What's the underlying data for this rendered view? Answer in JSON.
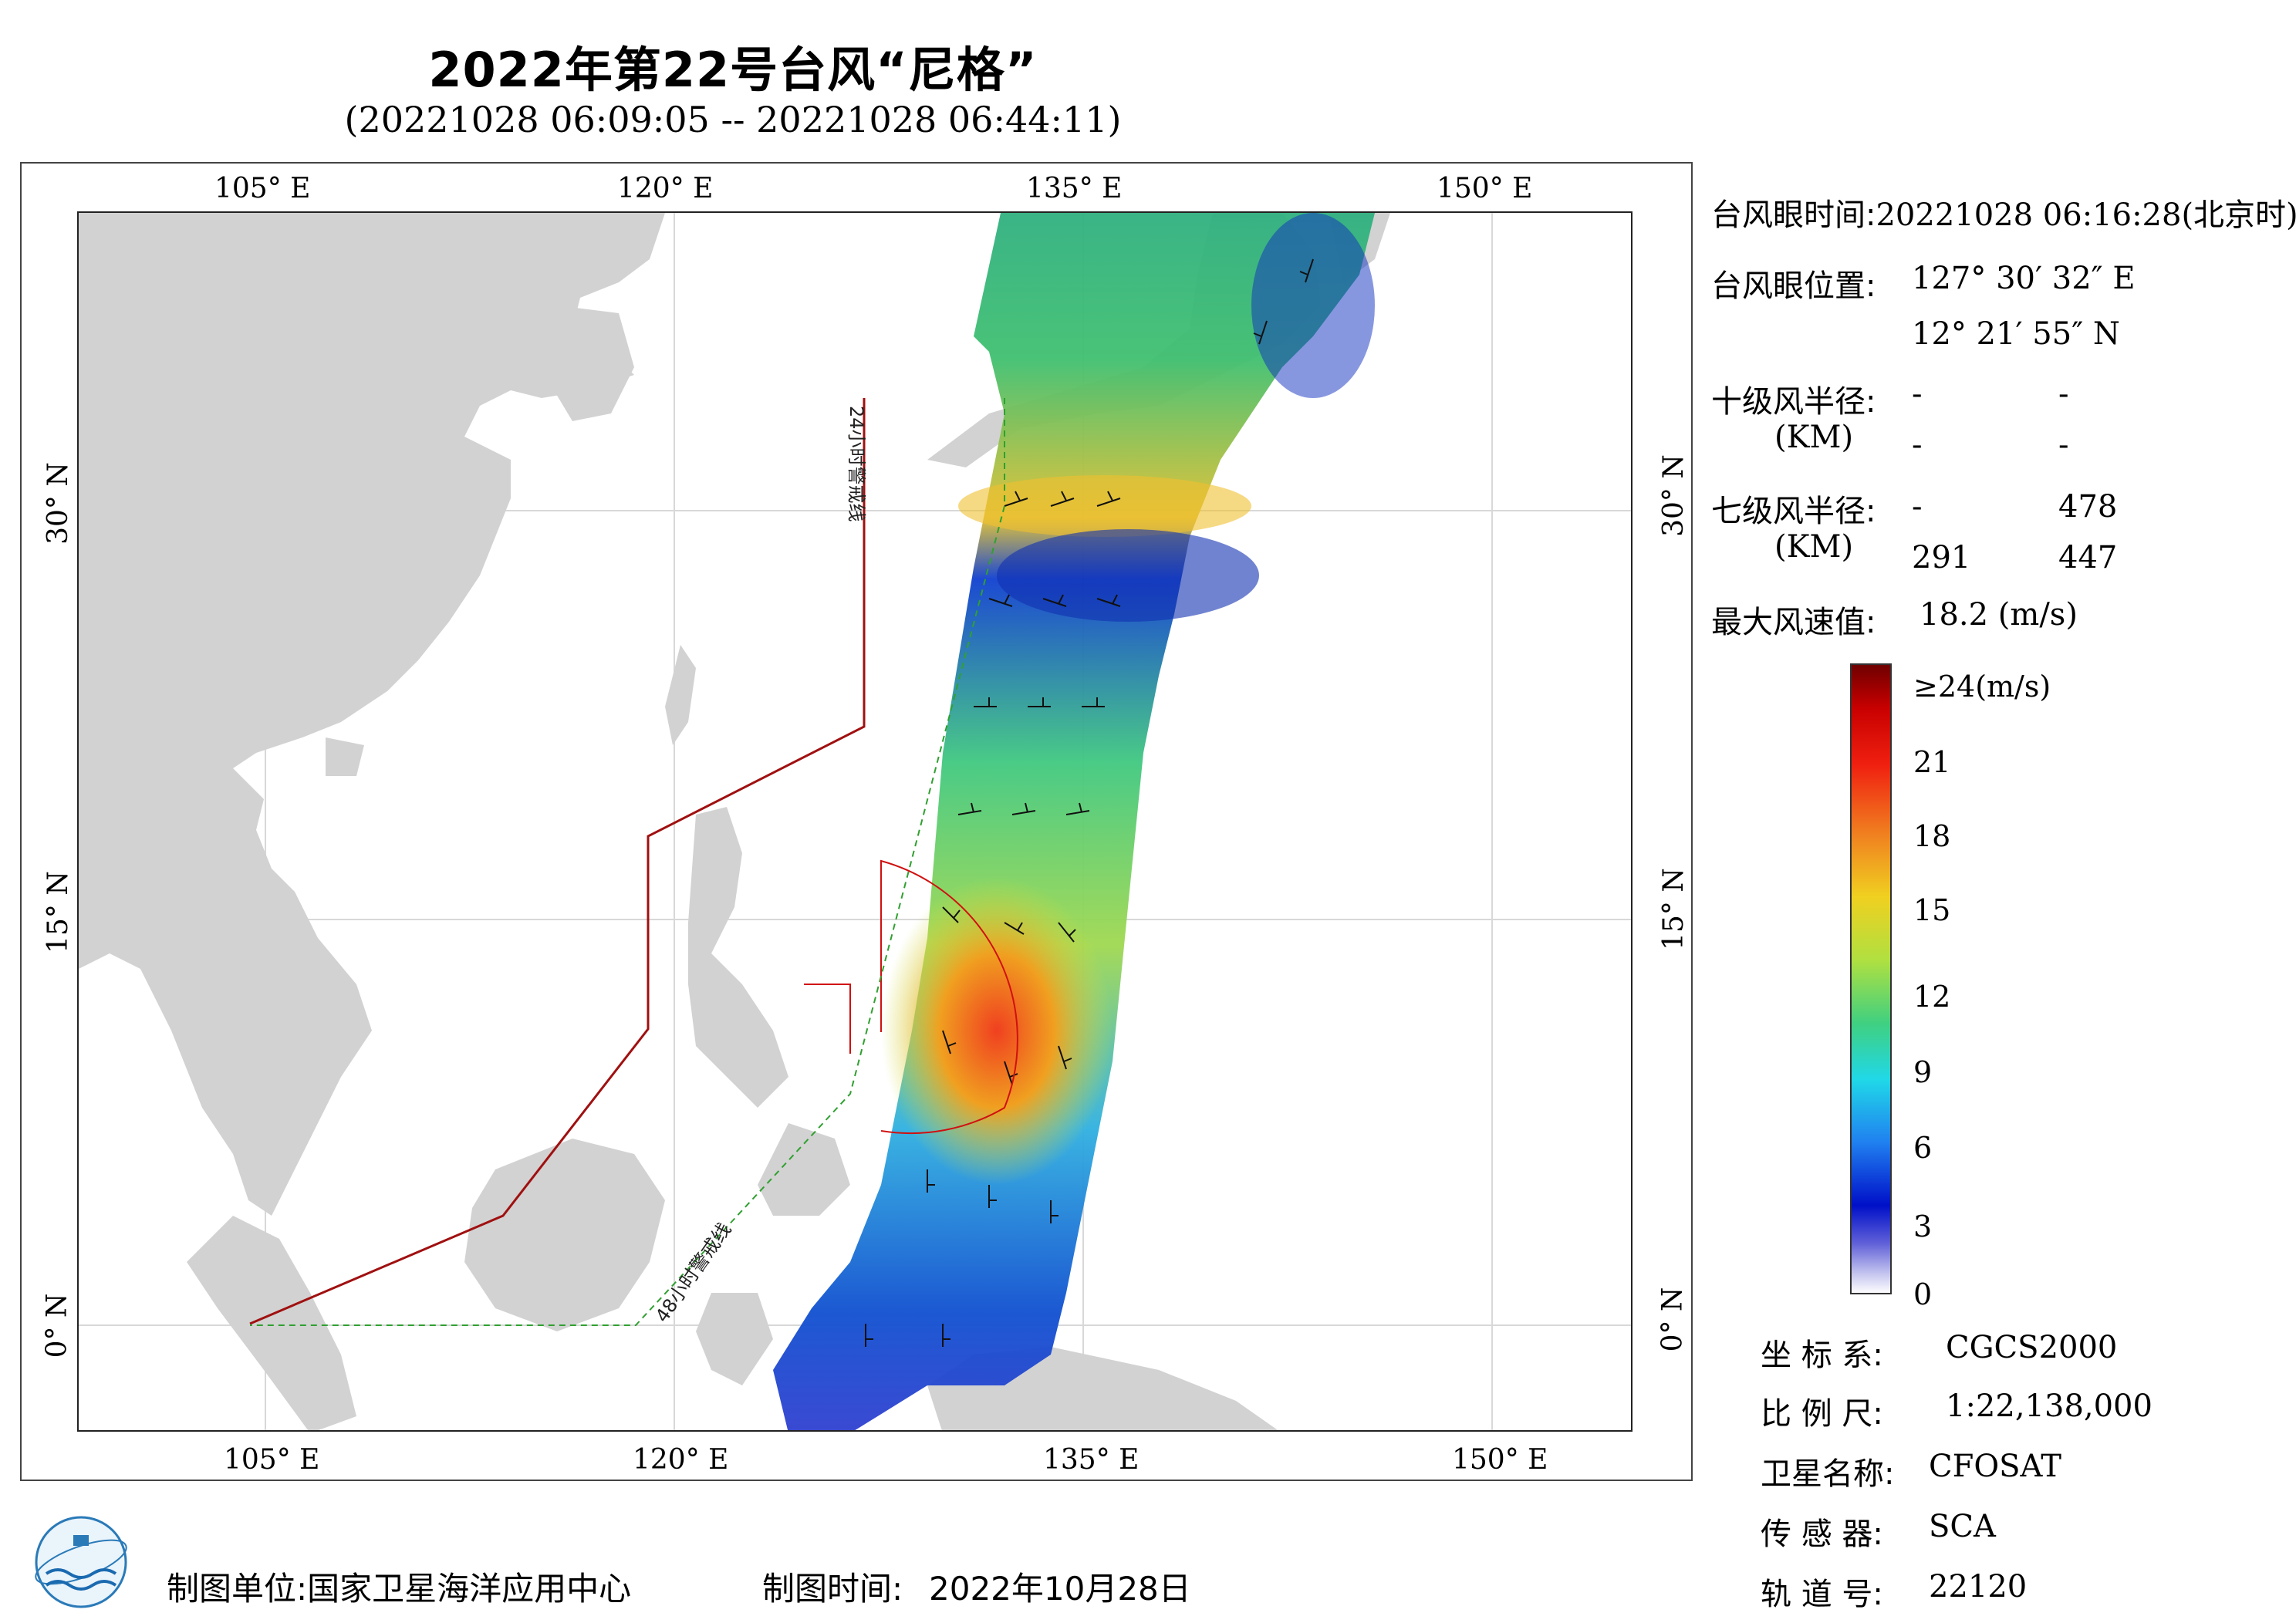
{
  "header": {
    "title": "2022年第22号台风“尼格”",
    "subtitle": "(20221028 06:09:05 -- 20221028 06:44:11)"
  },
  "axes": {
    "top_lon": [
      "105° E",
      "120° E",
      "135° E",
      "150° E"
    ],
    "bottom_lon": [
      "105° E",
      "120° E",
      "135° E",
      "150° E"
    ],
    "left_lat": [
      "30° N",
      "15° N",
      "0° N"
    ],
    "right_lat": [
      "30° N",
      "15° N",
      "0° N"
    ]
  },
  "map_labels": {
    "warning_24h": "24小时警戒线",
    "warning_48h": "48小时警戒线"
  },
  "info": {
    "eye_time_label": "台风眼时间:",
    "eye_time_value": "20221028 06:16:28(北京时)",
    "eye_pos_label": "台风眼位置:",
    "eye_lon": "127° 30′ 32″ E",
    "eye_lat": "12° 21′ 55″ N",
    "r10_label": "十级风半径:",
    "r10_unit": "(KM)",
    "r10_values": [
      "-",
      "-",
      "-",
      "-"
    ],
    "r7_label": "七级风半径:",
    "r7_unit": "(KM)",
    "r7_values": [
      "-",
      "478",
      "291",
      "447"
    ],
    "max_wind_label": "最大风速值:",
    "max_wind_value": "18.2  (m/s)"
  },
  "legend": {
    "ticks": [
      "≥24(m/s)",
      "21",
      "18",
      "15",
      "12",
      "9",
      "6",
      "3",
      "0"
    ],
    "colors": [
      "#7a0000",
      "#d01010",
      "#f04010",
      "#f08a20",
      "#f0d020",
      "#c0e040",
      "#50d070",
      "#20d0e0",
      "#2090f0",
      "#1040e0",
      "#0010c0",
      "#3030d0",
      "#8080e0",
      "#c8c8f0",
      "#ffffff"
    ]
  },
  "meta": {
    "crs_label": "坐 标 系:",
    "crs_value": "CGCS2000",
    "scale_label": "比 例 尺:",
    "scale_value": "1:22,138,000",
    "satellite_label": "卫星名称:",
    "satellite_value": "CFOSAT",
    "sensor_label": "传 感 器:",
    "sensor_value": "SCA",
    "orbit_label": "轨 道 号:",
    "orbit_value": "22120"
  },
  "footer": {
    "producer_label": "制图单位:",
    "producer_value": "国家卫星海洋应用中心",
    "date_label": "制图时间:",
    "date_value": "2022年10月28日"
  }
}
